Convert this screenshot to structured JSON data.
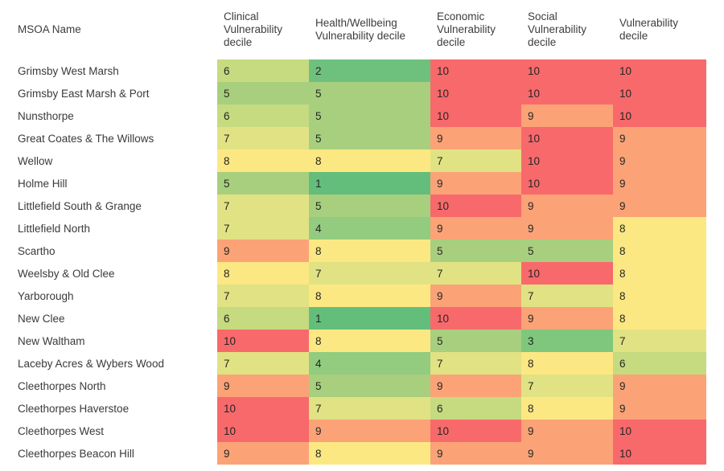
{
  "page": {
    "background_color": "#ffffff",
    "text_color": "#3a3a3a"
  },
  "decile_colors": {
    "1": "#63be7b",
    "2": "#6ec17c",
    "3": "#7fc77d",
    "4": "#93cb7f",
    "5": "#a8cf7e",
    "6": "#c6da80",
    "7": "#e1e283",
    "8": "#fce883",
    "9": "#fba377",
    "10": "#f8696b"
  },
  "chart_data": {
    "type": "table",
    "columns": [
      "MSOA Name",
      "Clinical Vulnerability decile",
      "Health/Wellbeing Vulnerability decile",
      "Economic Vulnerability decile",
      "Social Vulnerability decile",
      "Vulnerability decile"
    ],
    "value_range": [
      1,
      10
    ],
    "color_scale": "green-yellow-red (low decile = green, high decile = red)",
    "rows": [
      {
        "name": "Grimsby West Marsh",
        "values": [
          6,
          2,
          10,
          10,
          10
        ]
      },
      {
        "name": "Grimsby East Marsh & Port",
        "values": [
          5,
          5,
          10,
          10,
          10
        ]
      },
      {
        "name": "Nunsthorpe",
        "values": [
          6,
          5,
          10,
          9,
          10
        ]
      },
      {
        "name": "Great Coates & The Willows",
        "values": [
          7,
          5,
          9,
          10,
          9
        ]
      },
      {
        "name": "Wellow",
        "values": [
          8,
          8,
          7,
          10,
          9
        ]
      },
      {
        "name": "Holme Hill",
        "values": [
          5,
          1,
          9,
          10,
          9
        ]
      },
      {
        "name": "Littlefield South & Grange",
        "values": [
          7,
          5,
          10,
          9,
          9
        ]
      },
      {
        "name": "Littlefield North",
        "values": [
          7,
          4,
          9,
          9,
          8
        ]
      },
      {
        "name": "Scartho",
        "values": [
          9,
          8,
          5,
          5,
          8
        ]
      },
      {
        "name": "Weelsby & Old Clee",
        "values": [
          8,
          7,
          7,
          10,
          8
        ]
      },
      {
        "name": "Yarborough",
        "values": [
          7,
          8,
          9,
          7,
          8
        ]
      },
      {
        "name": "New Clee",
        "values": [
          6,
          1,
          10,
          9,
          8
        ]
      },
      {
        "name": "New Waltham",
        "values": [
          10,
          8,
          5,
          3,
          7
        ]
      },
      {
        "name": "Laceby Acres & Wybers Wood",
        "values": [
          7,
          4,
          7,
          8,
          6
        ]
      },
      {
        "name": "Cleethorpes North",
        "values": [
          9,
          5,
          9,
          7,
          9
        ]
      },
      {
        "name": "Cleethorpes Haverstoe",
        "values": [
          10,
          7,
          6,
          8,
          9
        ]
      },
      {
        "name": "Cleethorpes West",
        "values": [
          10,
          9,
          10,
          9,
          10
        ]
      },
      {
        "name": "Cleethorpes Beacon Hill",
        "values": [
          9,
          8,
          9,
          9,
          10
        ]
      }
    ]
  }
}
